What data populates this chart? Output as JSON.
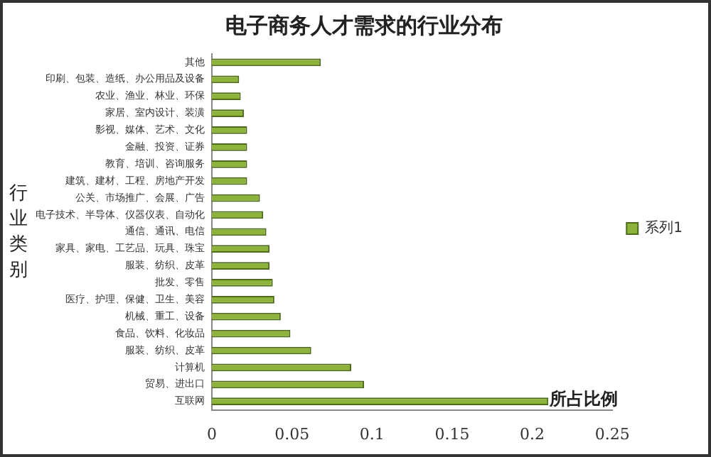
{
  "chart_data": {
    "type": "bar",
    "orientation": "horizontal",
    "title": "电子商务人才需求的行业分布",
    "xlabel": "所占比例",
    "ylabel": "行业类别",
    "categories": [
      "其他",
      "印刷、包装、造纸、办公用品及设备",
      "农业、渔业、林业、环保",
      "家居、室内设计、装潢",
      "影视、媒体、艺术、文化",
      "金融、投资、证券",
      "教育、培训、咨询服务",
      "建筑、建材、工程、房地产开发",
      "公关、市场推广、会展、广告",
      "电子技术、半导体、仪器仪表、自动化",
      "通信、通讯、电信",
      "家具、家电、工艺品、玩具、珠宝",
      "服装、纺织、皮革",
      "批发、零售",
      "医疗、护理、保健、卫生、美容",
      "机械、重工、设备",
      "食品、饮料、化妆品",
      "服装、纺织、皮革",
      "计算机",
      "贸易、进出口",
      "互联网"
    ],
    "series": [
      {
        "name": "系列1",
        "color": "#8db33a",
        "values": [
          0.068,
          0.017,
          0.018,
          0.02,
          0.022,
          0.022,
          0.022,
          0.022,
          0.03,
          0.032,
          0.034,
          0.036,
          0.036,
          0.038,
          0.039,
          0.043,
          0.049,
          0.062,
          0.087,
          0.095,
          0.21
        ]
      }
    ],
    "xlim": [
      0,
      0.25
    ],
    "xticks": [
      0,
      0.05,
      0.1,
      0.15,
      0.2,
      0.25
    ],
    "grid": false,
    "legend": "right"
  }
}
